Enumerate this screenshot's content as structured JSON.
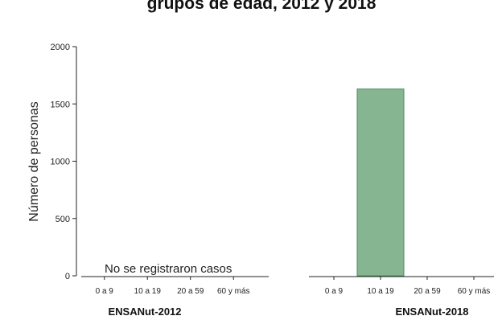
{
  "chart_data": {
    "type": "bar",
    "title": "grupos de edad, 2012 y 2018",
    "ylabel": "Número de personas",
    "ylim": [
      0,
      2000
    ],
    "yticks": [
      0,
      500,
      1000,
      1500,
      2000
    ],
    "grid": false,
    "groups": [
      {
        "name": "ENSANut-2012",
        "categories": [
          "0 a 9",
          "10 a 19",
          "20 a 59",
          "60 y más"
        ],
        "values": [
          0,
          0,
          0,
          0
        ],
        "note": "No se registraron casos"
      },
      {
        "name": "ENSANut-2018",
        "categories": [
          "0 a 9",
          "10 a 19",
          "20 a 59",
          "60 y más"
        ],
        "values": [
          0,
          1630,
          0,
          0
        ]
      }
    ],
    "bar_color": "#86b592",
    "bar_edge_color": "#4f8a60"
  }
}
